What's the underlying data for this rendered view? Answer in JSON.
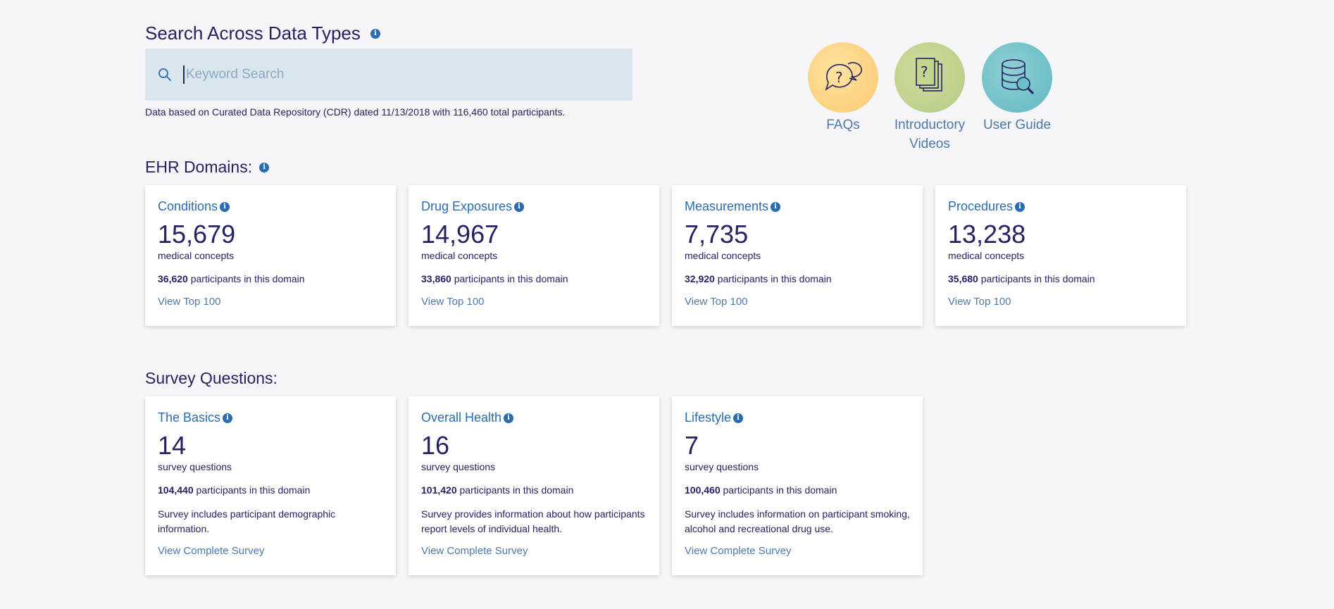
{
  "search": {
    "title": "Search Across Data Types",
    "placeholder": "Keyword Search",
    "note": "Data based on Curated Data Repository (CDR) dated 11/13/2018 with 116,460 total participants."
  },
  "resources": [
    {
      "label_line1": "FAQs",
      "label_line2": "",
      "icon": "faq-icon",
      "color": "#fcd47a"
    },
    {
      "label_line1": "Introductory",
      "label_line2": "Videos",
      "icon": "video-icon",
      "color": "#b9d08c"
    },
    {
      "label_line1": "User Guide",
      "label_line2": "",
      "icon": "database-search-icon",
      "color": "#6dbfc6"
    }
  ],
  "ehr": {
    "title": "EHR Domains:",
    "cards": [
      {
        "title": "Conditions",
        "count": "15,679",
        "unit": "medical concepts",
        "participants": "36,620",
        "participants_suffix": "participants in this domain",
        "link": "View Top 100"
      },
      {
        "title": "Drug Exposures",
        "count": "14,967",
        "unit": "medical concepts",
        "participants": "33,860",
        "participants_suffix": "participants in this domain",
        "link": "View Top 100"
      },
      {
        "title": "Measurements",
        "count": "7,735",
        "unit": "medical concepts",
        "participants": "32,920",
        "participants_suffix": "participants in this domain",
        "link": "View Top 100"
      },
      {
        "title": "Procedures",
        "count": "13,238",
        "unit": "medical concepts",
        "participants": "35,680",
        "participants_suffix": "participants in this domain",
        "link": "View Top 100"
      }
    ]
  },
  "survey": {
    "title": "Survey Questions:",
    "cards": [
      {
        "title": "The Basics",
        "count": "14",
        "unit": "survey questions",
        "participants": "104,440",
        "participants_suffix": "participants in this domain",
        "description": "Survey includes participant demographic information.",
        "link": "View Complete Survey"
      },
      {
        "title": "Overall Health",
        "count": "16",
        "unit": "survey questions",
        "participants": "101,420",
        "participants_suffix": "participants in this domain",
        "description": "Survey provides information about how participants report levels of individual health.",
        "link": "View Complete Survey"
      },
      {
        "title": "Lifestyle",
        "count": "7",
        "unit": "survey questions",
        "participants": "100,460",
        "participants_suffix": "participants in this domain",
        "description": "Survey includes information on participant smoking, alcohol and recreational drug use.",
        "link": "View Complete Survey"
      }
    ]
  }
}
